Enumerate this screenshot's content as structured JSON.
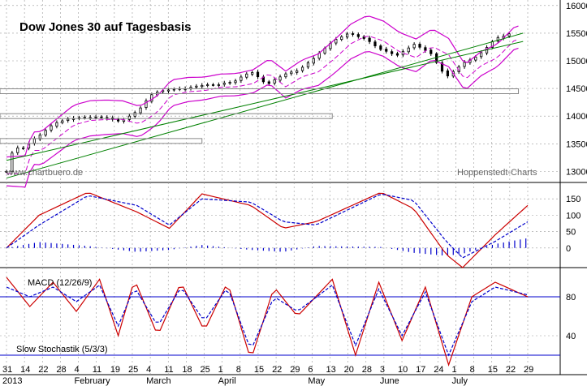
{
  "title": "Dow Jones 30 auf Tagesbasis",
  "watermark_left": "www.chartbuero.de",
  "watermark_right": "Hoppenstedt-Charts",
  "chart_data": [
    {
      "type": "candlestick",
      "title": "Dow Jones 30 auf Tagesbasis",
      "ylim": [
        12800,
        16100
      ],
      "yticks": [
        13000,
        13500,
        14000,
        14500,
        15000,
        15500,
        16000
      ],
      "close": [
        {
          "day": 0,
          "v": 13000
        },
        {
          "day": 3,
          "v": 13420
        },
        {
          "day": 7,
          "v": 13420
        },
        {
          "day": 14,
          "v": 13650
        },
        {
          "day": 21,
          "v": 13880
        },
        {
          "day": 28,
          "v": 13960
        },
        {
          "day": 35,
          "v": 13980
        },
        {
          "day": 42,
          "v": 13980
        },
        {
          "day": 49,
          "v": 13900
        },
        {
          "day": 53,
          "v": 14000
        },
        {
          "day": 57,
          "v": 14120
        },
        {
          "day": 63,
          "v": 14420
        },
        {
          "day": 70,
          "v": 14480
        },
        {
          "day": 77,
          "v": 14500
        },
        {
          "day": 84,
          "v": 14560
        },
        {
          "day": 91,
          "v": 14570
        },
        {
          "day": 98,
          "v": 14630
        },
        {
          "day": 105,
          "v": 14810
        },
        {
          "day": 112,
          "v": 14570
        },
        {
          "day": 119,
          "v": 14750
        },
        {
          "day": 126,
          "v": 14840
        },
        {
          "day": 133,
          "v": 15080
        },
        {
          "day": 140,
          "v": 15350
        },
        {
          "day": 147,
          "v": 15500
        },
        {
          "day": 154,
          "v": 15400
        },
        {
          "day": 161,
          "v": 15200
        },
        {
          "day": 168,
          "v": 15100
        },
        {
          "day": 175,
          "v": 15300
        },
        {
          "day": 182,
          "v": 15150
        },
        {
          "day": 189,
          "v": 14700
        },
        {
          "day": 196,
          "v": 14950
        },
        {
          "day": 203,
          "v": 15100
        },
        {
          "day": 210,
          "v": 15400
        },
        {
          "day": 217,
          "v": 15500
        }
      ],
      "reference_lines": [
        13550,
        14000,
        14450
      ]
    },
    {
      "type": "line",
      "indicator": "MACD (12/26/9)",
      "yticks": [
        0,
        50,
        100,
        150
      ],
      "ylim": [
        -60,
        200
      ],
      "macd": [
        {
          "day": 0,
          "v": 0
        },
        {
          "day": 14,
          "v": 100
        },
        {
          "day": 35,
          "v": 170
        },
        {
          "day": 56,
          "v": 110
        },
        {
          "day": 70,
          "v": 60
        },
        {
          "day": 84,
          "v": 165
        },
        {
          "day": 105,
          "v": 130
        },
        {
          "day": 119,
          "v": 60
        },
        {
          "day": 133,
          "v": 80
        },
        {
          "day": 161,
          "v": 170
        },
        {
          "day": 175,
          "v": 120
        },
        {
          "day": 189,
          "v": -20
        },
        {
          "day": 196,
          "v": -60
        },
        {
          "day": 210,
          "v": 40
        },
        {
          "day": 224,
          "v": 130
        }
      ],
      "signal": [
        {
          "day": 0,
          "v": 0
        },
        {
          "day": 14,
          "v": 70
        },
        {
          "day": 35,
          "v": 160
        },
        {
          "day": 56,
          "v": 130
        },
        {
          "day": 70,
          "v": 70
        },
        {
          "day": 84,
          "v": 150
        },
        {
          "day": 105,
          "v": 140
        },
        {
          "day": 119,
          "v": 80
        },
        {
          "day": 133,
          "v": 70
        },
        {
          "day": 161,
          "v": 165
        },
        {
          "day": 175,
          "v": 145
        },
        {
          "day": 189,
          "v": 20
        },
        {
          "day": 196,
          "v": -30
        },
        {
          "day": 210,
          "v": 20
        },
        {
          "day": 224,
          "v": 80
        }
      ]
    },
    {
      "type": "line",
      "indicator": "Slow Stochastik (5/3/3)",
      "yticks": [
        40,
        80
      ],
      "ylim": [
        0,
        110
      ],
      "reference_lines": [
        20,
        80
      ],
      "k": [
        {
          "day": 0,
          "v": 100
        },
        {
          "day": 10,
          "v": 70
        },
        {
          "day": 20,
          "v": 95
        },
        {
          "day": 30,
          "v": 65
        },
        {
          "day": 40,
          "v": 98
        },
        {
          "day": 48,
          "v": 40
        },
        {
          "day": 55,
          "v": 98
        },
        {
          "day": 65,
          "v": 40
        },
        {
          "day": 75,
          "v": 95
        },
        {
          "day": 85,
          "v": 45
        },
        {
          "day": 95,
          "v": 95
        },
        {
          "day": 105,
          "v": 15
        },
        {
          "day": 115,
          "v": 90
        },
        {
          "day": 125,
          "v": 60
        },
        {
          "day": 140,
          "v": 98
        },
        {
          "day": 150,
          "v": 20
        },
        {
          "day": 160,
          "v": 95
        },
        {
          "day": 170,
          "v": 35
        },
        {
          "day": 180,
          "v": 90
        },
        {
          "day": 190,
          "v": 10
        },
        {
          "day": 200,
          "v": 80
        },
        {
          "day": 210,
          "v": 95
        },
        {
          "day": 224,
          "v": 80
        }
      ],
      "d": [
        {
          "day": 0,
          "v": 90
        },
        {
          "day": 10,
          "v": 80
        },
        {
          "day": 20,
          "v": 90
        },
        {
          "day": 30,
          "v": 75
        },
        {
          "day": 40,
          "v": 92
        },
        {
          "day": 48,
          "v": 50
        },
        {
          "day": 55,
          "v": 90
        },
        {
          "day": 65,
          "v": 50
        },
        {
          "day": 75,
          "v": 90
        },
        {
          "day": 85,
          "v": 55
        },
        {
          "day": 95,
          "v": 90
        },
        {
          "day": 105,
          "v": 25
        },
        {
          "day": 115,
          "v": 80
        },
        {
          "day": 125,
          "v": 65
        },
        {
          "day": 140,
          "v": 92
        },
        {
          "day": 150,
          "v": 30
        },
        {
          "day": 160,
          "v": 88
        },
        {
          "day": 170,
          "v": 40
        },
        {
          "day": 180,
          "v": 85
        },
        {
          "day": 190,
          "v": 20
        },
        {
          "day": 200,
          "v": 75
        },
        {
          "day": 210,
          "v": 90
        },
        {
          "day": 224,
          "v": 82
        }
      ]
    }
  ],
  "x_axis": {
    "tick_labels": [
      "31",
      "14",
      "22",
      "28",
      "4",
      "11",
      "19",
      "25",
      "4",
      "11",
      "18",
      "25",
      "1",
      "8",
      "15",
      "22",
      "29",
      "6",
      "13",
      "20",
      "28",
      "3",
      "10",
      "17",
      "24",
      "1",
      "8",
      "15",
      "22",
      "29"
    ],
    "month_labels": [
      {
        "label": "2013",
        "tick_index": 0
      },
      {
        "label": "February",
        "tick_index": 4
      },
      {
        "label": "March",
        "tick_index": 8
      },
      {
        "label": "April",
        "tick_index": 12
      },
      {
        "label": "May",
        "tick_index": 17
      },
      {
        "label": "June",
        "tick_index": 21
      },
      {
        "label": "July",
        "tick_index": 25
      }
    ]
  },
  "colors": {
    "candle": "#000000",
    "bollinger": "#cc00cc",
    "ma": "#cc00cc",
    "trend": "#008000",
    "macd": "#cc0000",
    "signal": "#0000cc",
    "histogram": "#0000cc",
    "stoch_k": "#cc0000",
    "stoch_d": "#0000cc",
    "refline": "#0000cc",
    "grid": "#999999",
    "support": "#888888"
  }
}
